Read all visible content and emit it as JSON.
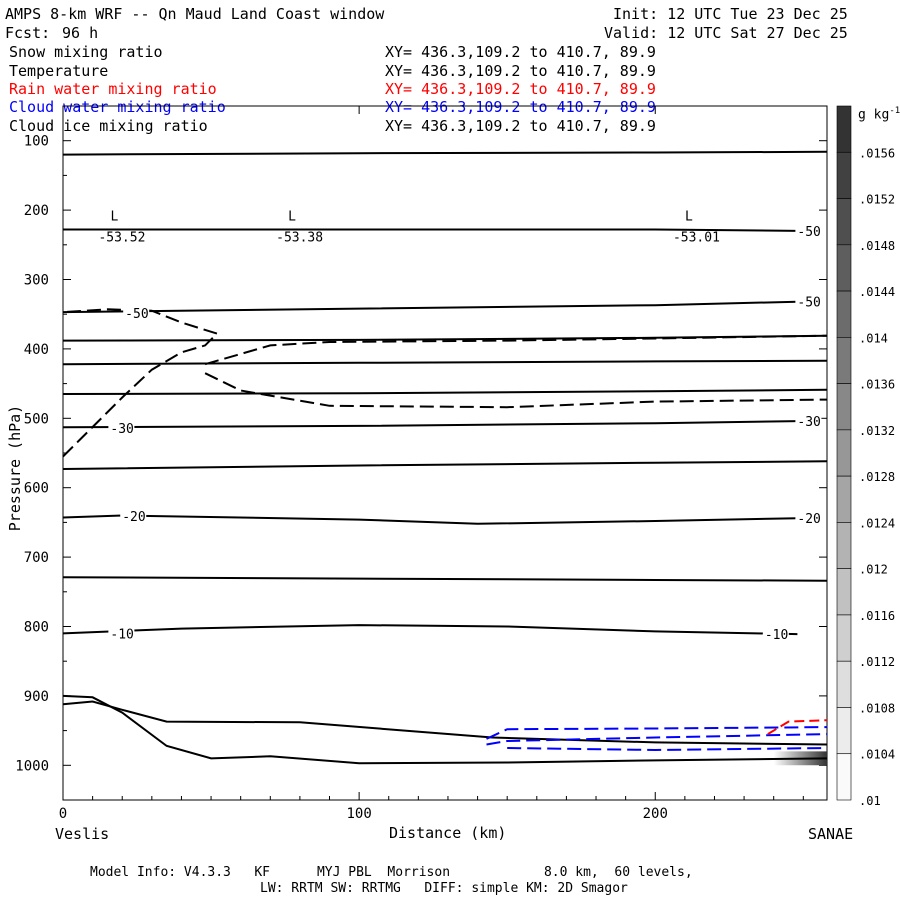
{
  "header": {
    "title": "AMPS 8-km WRF -- Qn Maud Land Coast window",
    "init": "Init: 12 UTC Tue 23 Dec 25",
    "fcst_label": "Fcst:",
    "fcst_value": "96 h",
    "valid": "Valid: 12 UTC Sat 27 Dec 25"
  },
  "fields": [
    {
      "name": "Snow mixing ratio",
      "xy": "XY= 436.3,109.2 to 410.7, 89.9",
      "color": "#000000"
    },
    {
      "name": "Temperature",
      "xy": "XY= 436.3,109.2 to 410.7, 89.9",
      "color": "#000000"
    },
    {
      "name": "Rain water mixing ratio",
      "xy": "XY= 436.3,109.2 to 410.7, 89.9",
      "color": "#ff0000"
    },
    {
      "name": "Cloud water mixing ratio",
      "xy": "XY= 436.3,109.2 to 410.7, 89.9",
      "color": "#0000ff"
    },
    {
      "name": "Cloud ice mixing ratio",
      "xy": "XY= 436.3,109.2 to 410.7, 89.9",
      "color": "#000000"
    }
  ],
  "footer": {
    "line1": "Model Info: V4.3.3   KF      MYJ PBL  Morrison            8.0 km,  60 levels,",
    "line2": "LW: RRTM SW: RRTMG   DIFF: simple KM: 2D Smagor"
  },
  "chart_data": {
    "type": "cross-section contour",
    "xlabel": "Distance (km)",
    "ylabel": "Pressure (hPa)",
    "xlim": [
      0,
      258
    ],
    "ylim": [
      50,
      1050
    ],
    "x_ticks": [
      0,
      100,
      200
    ],
    "y_ticks": [
      100,
      200,
      300,
      400,
      500,
      600,
      700,
      800,
      900,
      1000
    ],
    "left_endpoint": "Veslis",
    "right_endpoint": "SANAE",
    "colorbar": {
      "unit_base": "g kg",
      "unit_exp": "-1",
      "levels": [
        ".0156",
        ".0152",
        ".0148",
        ".0144",
        ".014",
        ".0136",
        ".0132",
        ".0128",
        ".0124",
        ".012",
        ".0116",
        ".0112",
        ".0108",
        ".0104",
        ".01"
      ]
    },
    "temperature_contours": [
      {
        "label": "",
        "points": [
          [
            0,
            120
          ],
          [
            100,
            118
          ],
          [
            200,
            117
          ],
          [
            258,
            116
          ]
        ]
      },
      {
        "label": "-50",
        "points": [
          [
            0,
            228
          ],
          [
            100,
            228
          ],
          [
            200,
            228
          ],
          [
            248,
            230
          ]
        ]
      },
      {
        "label": "-50",
        "points": [
          [
            0,
            347
          ],
          [
            100,
            342
          ],
          [
            200,
            337
          ],
          [
            248,
            332
          ]
        ]
      },
      {
        "label": "",
        "points": [
          [
            0,
            388
          ],
          [
            100,
            387
          ],
          [
            200,
            384
          ],
          [
            258,
            381
          ]
        ]
      },
      {
        "label": "",
        "points": [
          [
            0,
            422
          ],
          [
            100,
            420
          ],
          [
            200,
            418
          ],
          [
            258,
            417
          ]
        ]
      },
      {
        "label": "",
        "points": [
          [
            0,
            465
          ],
          [
            100,
            464
          ],
          [
            200,
            461
          ],
          [
            258,
            459
          ]
        ]
      },
      {
        "label": "-30",
        "points": [
          [
            0,
            513
          ],
          [
            100,
            511
          ],
          [
            200,
            507
          ],
          [
            248,
            504
          ]
        ]
      },
      {
        "label": "",
        "points": [
          [
            0,
            573
          ],
          [
            100,
            568
          ],
          [
            200,
            564
          ],
          [
            258,
            562
          ]
        ]
      },
      {
        "label": "-20",
        "points": [
          [
            0,
            643
          ],
          [
            20,
            640
          ],
          [
            100,
            646
          ],
          [
            140,
            652
          ],
          [
            200,
            648
          ],
          [
            248,
            644
          ]
        ]
      },
      {
        "label": "",
        "points": [
          [
            0,
            729
          ],
          [
            100,
            731
          ],
          [
            200,
            733
          ],
          [
            258,
            734
          ]
        ]
      },
      {
        "label": "-10",
        "points": [
          [
            0,
            810
          ],
          [
            40,
            803
          ],
          [
            100,
            798
          ],
          [
            150,
            800
          ],
          [
            200,
            807
          ],
          [
            248,
            811
          ]
        ]
      }
    ],
    "contour_label_positions": [
      {
        "label": "-50",
        "x": 248,
        "p": 230
      },
      {
        "label": "-50",
        "x": 248,
        "p": 332
      },
      {
        "label": "-50",
        "x": 21,
        "p": 348
      },
      {
        "label": "-30",
        "x": 248,
        "p": 504
      },
      {
        "label": "-30",
        "x": 16,
        "p": 514
      },
      {
        "label": "-20",
        "x": 248,
        "p": 644
      },
      {
        "label": "-20",
        "x": 20,
        "p": 641
      },
      {
        "label": "-10",
        "x": 237,
        "p": 811
      },
      {
        "label": "-10",
        "x": 16,
        "p": 810
      }
    ],
    "minima": [
      {
        "marker": "L",
        "value": "-53.52",
        "x": 14,
        "p": 245
      },
      {
        "marker": "L",
        "value": "-53.38",
        "x": 74,
        "p": 245
      },
      {
        "marker": "L",
        "value": "-53.01",
        "x": 208,
        "p": 245
      }
    ],
    "terrain": [
      [
        0,
        900
      ],
      [
        10,
        902
      ],
      [
        20,
        924
      ],
      [
        35,
        972
      ],
      [
        50,
        990
      ],
      [
        70,
        987
      ],
      [
        100,
        997
      ],
      [
        150,
        996
      ],
      [
        200,
        993
      ],
      [
        258,
        990
      ]
    ],
    "ground_level_surface": [
      [
        0,
        912
      ],
      [
        10,
        908
      ],
      [
        20,
        920
      ],
      [
        35,
        937
      ],
      [
        80,
        938
      ],
      [
        145,
        960
      ],
      [
        200,
        967
      ],
      [
        258,
        970
      ]
    ],
    "ice_mixing_contour": [
      [
        0,
        555
      ],
      [
        20,
        470
      ],
      [
        30,
        430
      ],
      [
        40,
        405
      ],
      [
        48,
        395
      ],
      [
        52,
        378
      ],
      [
        40,
        362
      ],
      [
        30,
        345
      ],
      [
        15,
        343
      ],
      [
        0,
        347
      ]
    ],
    "ice_mixing_contour_2": [
      [
        48,
        422
      ],
      [
        70,
        395
      ],
      [
        90,
        390
      ],
      [
        150,
        388
      ],
      [
        200,
        385
      ],
      [
        258,
        381
      ]
    ],
    "ice_mixing_contour_3": [
      [
        48,
        435
      ],
      [
        60,
        460
      ],
      [
        90,
        482
      ],
      [
        150,
        484
      ],
      [
        200,
        476
      ],
      [
        258,
        473
      ]
    ],
    "cloud_water_contours": [
      [
        [
          143,
          962
        ],
        [
          150,
          948
        ],
        [
          200,
          947
        ],
        [
          258,
          945
        ]
      ],
      [
        [
          143,
          970
        ],
        [
          150,
          965
        ],
        [
          200,
          960
        ],
        [
          258,
          955
        ]
      ],
      [
        [
          150,
          975
        ],
        [
          200,
          978
        ],
        [
          258,
          975
        ]
      ]
    ],
    "rain_water_contour": [
      [
        238,
        955
      ],
      [
        245,
        937
      ],
      [
        258,
        935
      ]
    ],
    "snow_shading": [
      [
        240,
        980
      ],
      [
        258,
        980
      ],
      [
        258,
        1000
      ],
      [
        240,
        1000
      ]
    ]
  }
}
